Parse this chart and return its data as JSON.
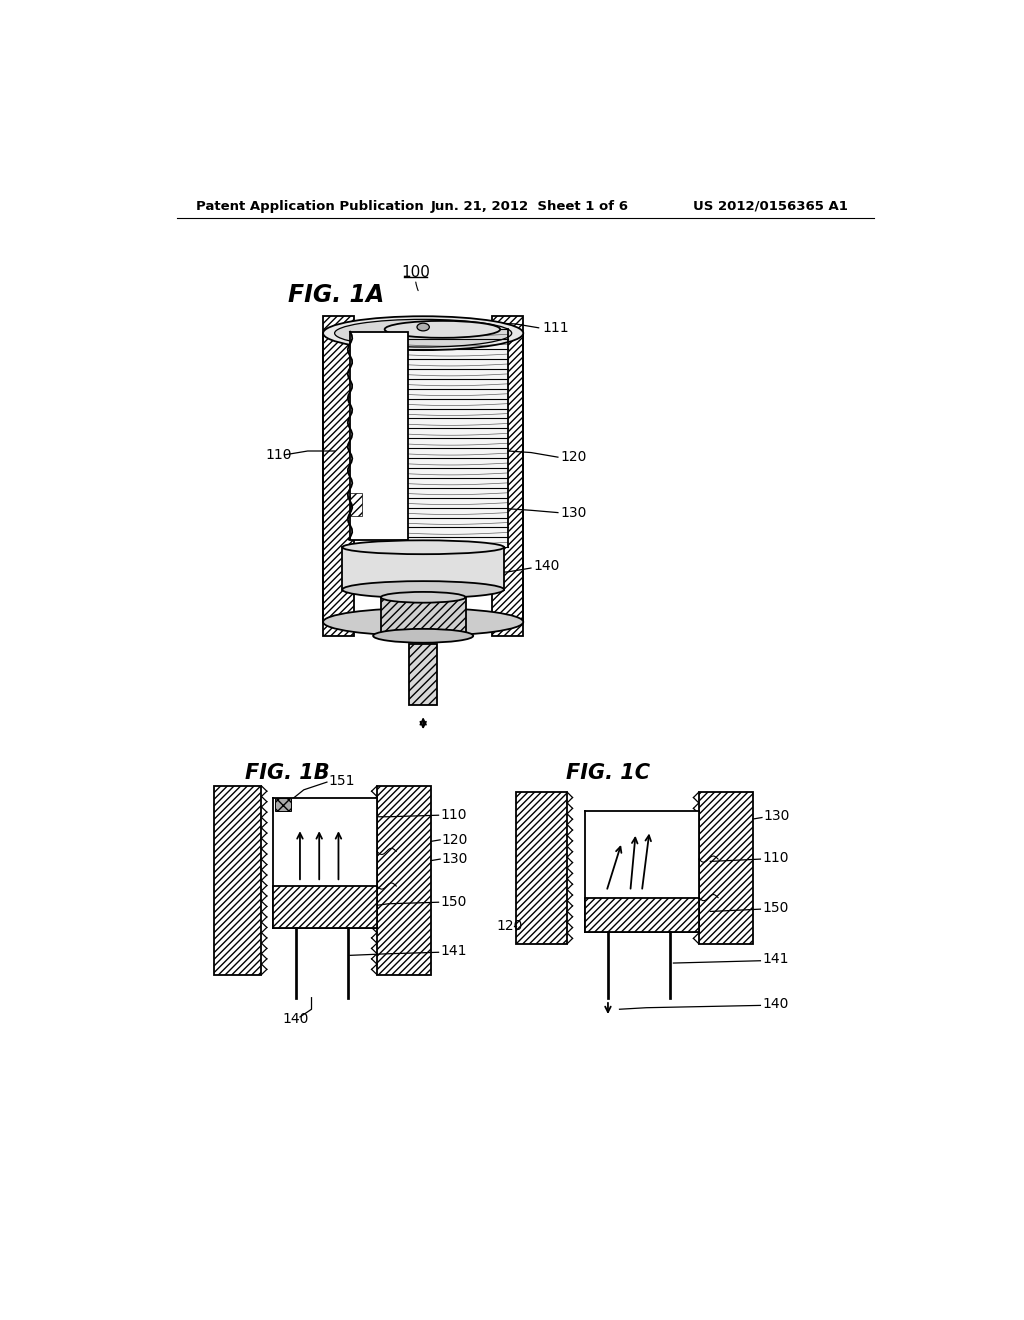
{
  "bg_color": "#ffffff",
  "line_color": "#000000",
  "header_left": "Patent Application Publication",
  "header_center": "Jun. 21, 2012  Sheet 1 of 6",
  "header_right": "US 2012/0156365 A1",
  "fig1a_label": "FIG. 1A",
  "fig1b_label": "FIG. 1B",
  "fig1c_label": "FIG. 1C",
  "ref_100": "100",
  "ref_110": "110",
  "ref_111": "111",
  "ref_120": "120",
  "ref_130": "130",
  "ref_140": "140",
  "ref_141": "141",
  "ref_150": "150",
  "ref_151": "151"
}
